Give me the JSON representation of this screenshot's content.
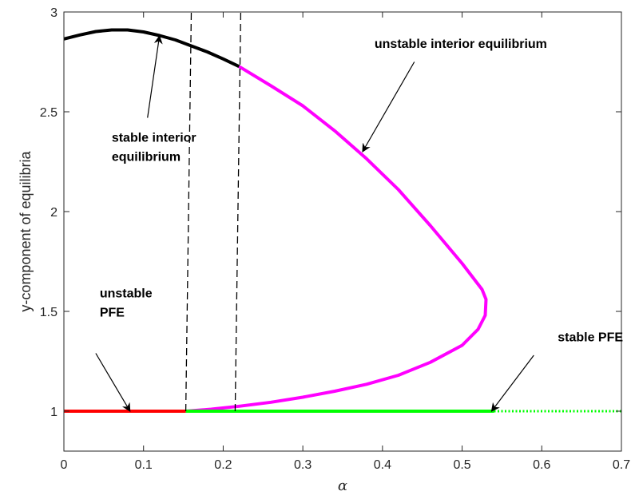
{
  "chart_data": {
    "type": "line",
    "xlabel": "α",
    "ylabel": "y-component of equilibria",
    "xlim": [
      0,
      0.7
    ],
    "ylim": [
      0.8,
      3
    ],
    "xticks": [
      0,
      0.1,
      0.2,
      0.3,
      0.4,
      0.5,
      0.6,
      0.7
    ],
    "xtick_labels": [
      "0",
      "0.1",
      "0.2",
      "0.3",
      "0.4",
      "0.5",
      "0.6",
      "0.7"
    ],
    "yticks": [
      1,
      1.5,
      2,
      2.5,
      3
    ],
    "ytick_labels": [
      "1",
      "1.5",
      "2",
      "2.5",
      "3"
    ],
    "grid": false,
    "box": true,
    "series": [
      {
        "color": "#000000",
        "style": "solid",
        "points": [
          [
            0,
            2.865
          ],
          [
            0.02,
            2.885
          ],
          [
            0.04,
            2.902
          ],
          [
            0.06,
            2.91
          ],
          [
            0.08,
            2.91
          ],
          [
            0.1,
            2.9
          ],
          [
            0.12,
            2.882
          ],
          [
            0.14,
            2.86
          ],
          [
            0.16,
            2.83
          ],
          [
            0.18,
            2.8
          ],
          [
            0.2,
            2.765
          ],
          [
            0.22,
            2.727
          ]
        ]
      },
      {
        "color": "#ff00ff",
        "style": "solid",
        "points": [
          [
            0.22,
            2.727
          ],
          [
            0.26,
            2.63
          ],
          [
            0.3,
            2.53
          ],
          [
            0.34,
            2.405
          ],
          [
            0.38,
            2.265
          ],
          [
            0.42,
            2.11
          ],
          [
            0.46,
            1.93
          ],
          [
            0.5,
            1.74
          ],
          [
            0.525,
            1.61
          ],
          [
            0.53,
            1.56
          ],
          [
            0.529,
            1.48
          ],
          [
            0.52,
            1.41
          ],
          [
            0.5,
            1.33
          ],
          [
            0.46,
            1.245
          ],
          [
            0.42,
            1.18
          ],
          [
            0.38,
            1.135
          ],
          [
            0.34,
            1.1
          ],
          [
            0.3,
            1.07
          ],
          [
            0.26,
            1.045
          ],
          [
            0.22,
            1.025
          ],
          [
            0.185,
            1.01
          ],
          [
            0.153,
            1.0
          ]
        ]
      },
      {
        "color": "#ff0000",
        "style": "solid",
        "points": [
          [
            0,
            1
          ],
          [
            0.153,
            1
          ]
        ]
      },
      {
        "color": "#00ff00",
        "style": "solid",
        "points": [
          [
            0.153,
            1
          ],
          [
            0.54,
            1
          ]
        ]
      },
      {
        "color": "#00ff00",
        "style": "dotted",
        "points": [
          [
            0.54,
            1
          ],
          [
            0.7,
            1
          ]
        ]
      }
    ],
    "dashed_lines": [
      {
        "points": [
          [
            0.153,
            1
          ],
          [
            0.16,
            3
          ]
        ]
      },
      {
        "points": [
          [
            0.215,
            1
          ],
          [
            0.222,
            3
          ]
        ]
      }
    ],
    "annotations": [
      {
        "lines": [
          "unstable interior equilibrium"
        ],
        "text_at": [
          0.39,
          2.82
        ],
        "arrow_from": [
          0.44,
          2.75
        ],
        "arrow_to": [
          0.375,
          2.3
        ]
      },
      {
        "lines": [
          "stable interior",
          "equilibrium"
        ],
        "text_at": [
          0.06,
          2.35
        ],
        "arrow_from": [
          0.105,
          2.47
        ],
        "arrow_to": [
          0.12,
          2.88
        ]
      },
      {
        "lines": [
          "unstable",
          "PFE"
        ],
        "text_at": [
          0.045,
          1.57
        ],
        "arrow_from": [
          0.04,
          1.29
        ],
        "arrow_to": [
          0.083,
          1.0
        ]
      },
      {
        "lines": [
          "stable PFE"
        ],
        "text_at": [
          0.62,
          1.35
        ],
        "arrow_from": [
          0.59,
          1.28
        ],
        "arrow_to": [
          0.537,
          1.0
        ]
      }
    ]
  }
}
